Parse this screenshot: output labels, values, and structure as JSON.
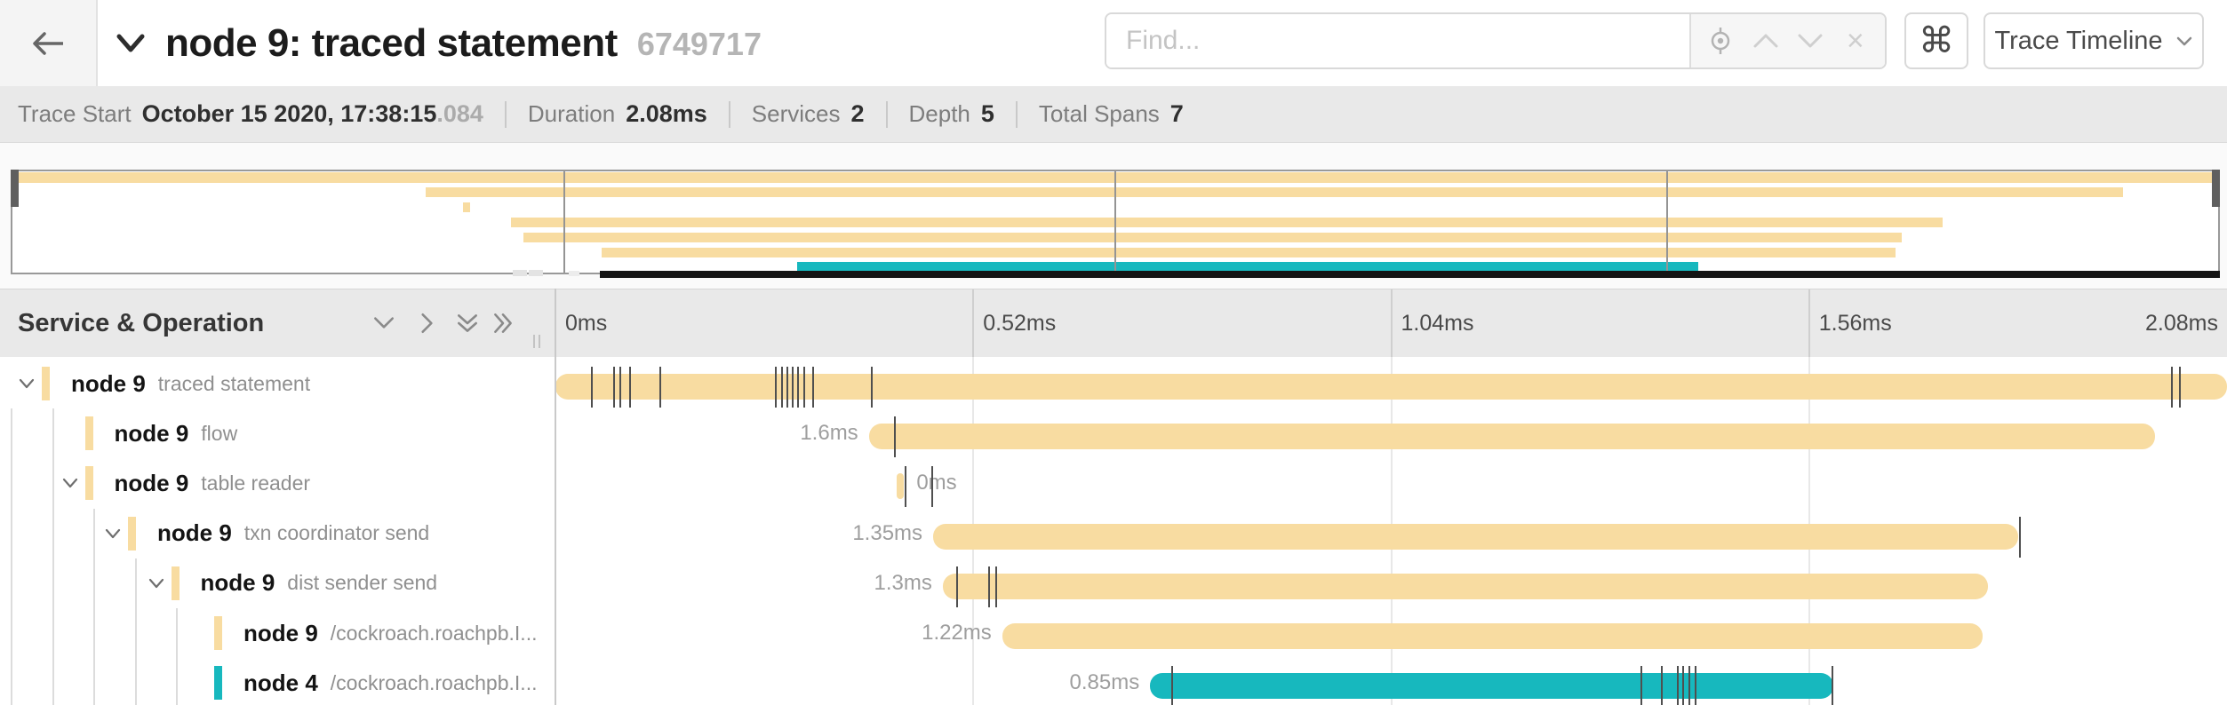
{
  "header": {
    "title": "node 9: traced statement",
    "trace_id": "6749717",
    "find_placeholder": "Find...",
    "command_glyph": "⌘",
    "view_selector": "Trace Timeline"
  },
  "summary": {
    "items": [
      {
        "label": "Trace Start",
        "value": "October 15 2020, 17:38:15",
        "suffix": ".084"
      },
      {
        "label": "Duration",
        "value": "2.08ms",
        "suffix": ""
      },
      {
        "label": "Services",
        "value": "2",
        "suffix": ""
      },
      {
        "label": "Depth",
        "value": "5",
        "suffix": ""
      },
      {
        "label": "Total Spans",
        "value": "7",
        "suffix": ""
      }
    ]
  },
  "minimap": {
    "ticks": [
      "0ms",
      "0.52ms",
      "1.04ms",
      "1.56ms",
      "2.08ms"
    ]
  },
  "timeline": {
    "left_header": "Service & Operation",
    "ticks": [
      "0ms",
      "0.52ms",
      "1.04ms",
      "1.56ms",
      "2.08ms"
    ],
    "total_ms": 2.08,
    "colors": {
      "tan": "#F8DCA1",
      "teal": "#17B8BE"
    },
    "spans": [
      {
        "service": "node 9",
        "operation": "traced statement",
        "depth": 0,
        "expandable": true,
        "color": "tan",
        "start_ms": 0,
        "duration_ms": 2.08,
        "label": "",
        "label_side": "none",
        "ticks_ms": [
          0.044,
          0.072,
          0.08,
          0.092,
          0.129,
          0.273,
          0.281,
          0.288,
          0.294,
          0.301,
          0.309,
          0.32,
          0.393,
          2.01,
          2.02
        ]
      },
      {
        "service": "node 9",
        "operation": "flow",
        "depth": 1,
        "expandable": false,
        "color": "tan",
        "start_ms": 0.39,
        "duration_ms": 1.6,
        "label": "1.6ms",
        "label_side": "left",
        "ticks_ms": [
          0.421
        ]
      },
      {
        "service": "node 9",
        "operation": "table reader",
        "depth": 1,
        "expandable": true,
        "color": "tan",
        "start_ms": 0.425,
        "duration_ms": 0.007,
        "label": "0ms",
        "label_side": "right",
        "ticks_ms": [
          0.435,
          0.468
        ]
      },
      {
        "service": "node 9",
        "operation": "txn coordinator send",
        "depth": 2,
        "expandable": true,
        "color": "tan",
        "start_ms": 0.47,
        "duration_ms": 1.35,
        "label": "1.35ms",
        "label_side": "left",
        "ticks_ms": [
          1.821
        ]
      },
      {
        "service": "node 9",
        "operation": "dist sender send",
        "depth": 3,
        "expandable": true,
        "color": "tan",
        "start_ms": 0.482,
        "duration_ms": 1.3,
        "label": "1.3ms",
        "label_side": "left",
        "ticks_ms": [
          0.499,
          0.539,
          0.547
        ]
      },
      {
        "service": "node 9",
        "operation": "/cockroach.roachpb.I...",
        "depth": 4,
        "expandable": false,
        "color": "tan",
        "start_ms": 0.556,
        "duration_ms": 1.22,
        "label": "1.22ms",
        "label_side": "left",
        "ticks_ms": []
      },
      {
        "service": "node 4",
        "operation": "/cockroach.roachpb.I...",
        "depth": 4,
        "expandable": false,
        "color": "teal",
        "start_ms": 0.74,
        "duration_ms": 0.85,
        "label": "0.85ms",
        "label_side": "left",
        "ticks_ms": [
          0.766,
          1.35,
          1.376,
          1.396,
          1.402,
          1.41,
          1.418,
          1.588
        ]
      }
    ]
  }
}
